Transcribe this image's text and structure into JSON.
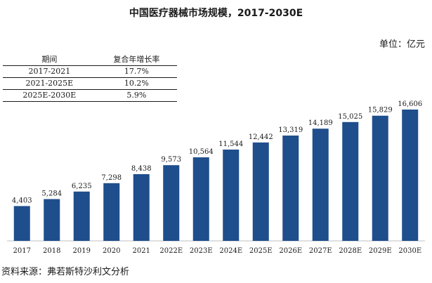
{
  "title": "中国医疗器械市场规模，2017-2030E",
  "unit_label": "单位：亿元",
  "cagr_table": {
    "headers": [
      "期间",
      "复合年增长率"
    ],
    "rows": [
      {
        "period": "2017-2021",
        "rate": "17.7%"
      },
      {
        "period": "2021-2025E",
        "rate": "10.2%"
      },
      {
        "period": "2025E-2030E",
        "rate": "5.9%"
      }
    ]
  },
  "chart_data": {
    "type": "bar",
    "categories": [
      "2017",
      "2018",
      "2019",
      "2020",
      "2021",
      "2022E",
      "2023E",
      "2024E",
      "2025E",
      "2026E",
      "2027E",
      "2028E",
      "2029E",
      "2030E"
    ],
    "values": [
      4403,
      5284,
      6235,
      7298,
      8438,
      9573,
      10564,
      11544,
      12442,
      13319,
      14189,
      15025,
      15829,
      16606
    ],
    "value_labels": [
      "4,403",
      "5,284",
      "6,235",
      "7,298",
      "8,438",
      "9,573",
      "10,564",
      "11,544",
      "12,442",
      "13,319",
      "14,189",
      "15,025",
      "15,829",
      "16,606"
    ],
    "bar_color": "#1f4e8c",
    "grid": false,
    "ylim": [
      0,
      20000
    ]
  },
  "source": "资料来源：弗若斯特沙利文分析"
}
